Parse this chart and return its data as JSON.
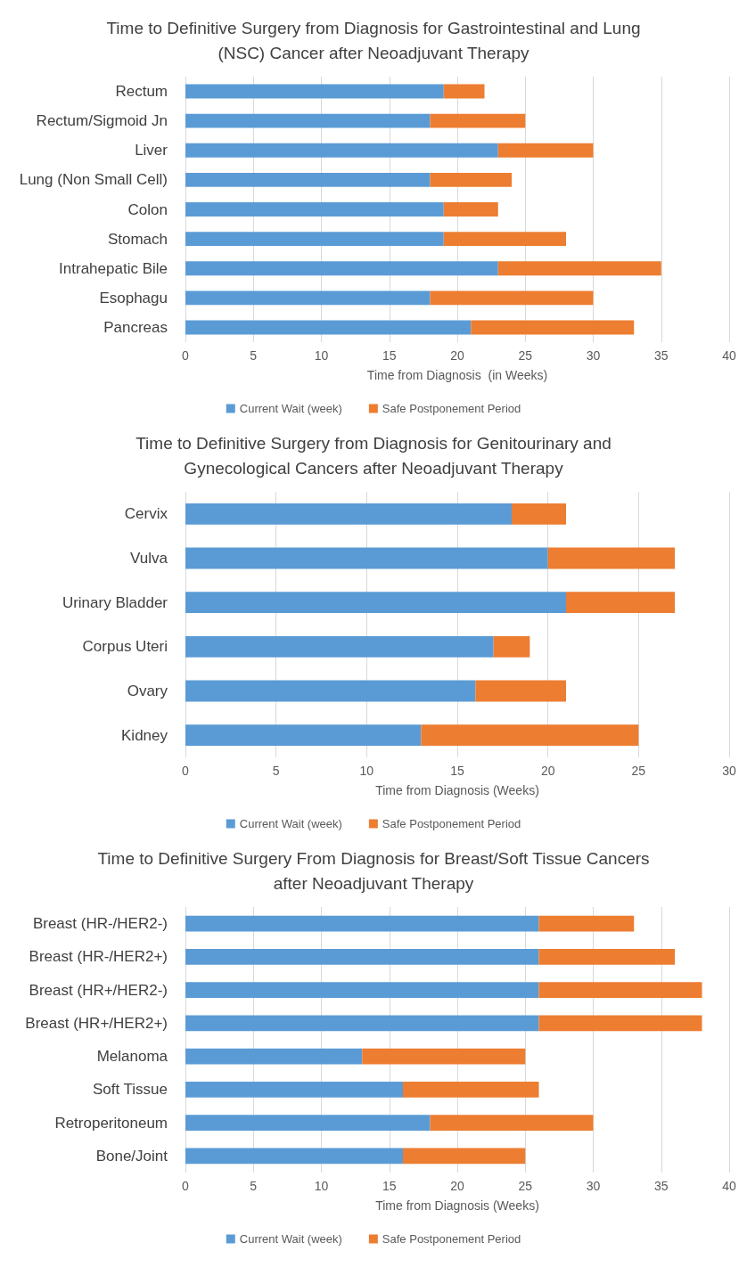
{
  "chart_data": [
    {
      "type": "bar",
      "orientation": "horizontal",
      "stacked": true,
      "title": "Time to Definitive Surgery from Diagnosis for Gastrointestinal and Lung (NSC) Cancer after Neoadjuvant Therapy",
      "xlabel": "Time from Diagnosis  (in Weeks)",
      "categories": [
        "Rectum",
        "Rectum/Sigmoid Jn",
        "Liver",
        "Lung (Non Small Cell)",
        "Colon",
        "Stomach",
        "Intrahepatic Bile",
        "Esophagu",
        "Pancreas"
      ],
      "series": [
        {
          "name": "Current Wait (week)",
          "color": "#5b9bd5",
          "values": [
            19,
            18,
            23,
            18,
            19,
            19,
            23,
            18,
            21
          ]
        },
        {
          "name": "Safe Postponement Period",
          "color": "#ed7d31",
          "values": [
            3,
            7,
            7,
            6,
            4,
            9,
            12,
            12,
            12
          ]
        }
      ],
      "xlim": [
        0,
        40
      ],
      "xticks": [
        0,
        5,
        10,
        15,
        20,
        25,
        30,
        35,
        40
      ],
      "grid": "x",
      "legend": "bottom"
    },
    {
      "type": "bar",
      "orientation": "horizontal",
      "stacked": true,
      "title": "Time to Definitive Surgery from Diagnosis for Genitourinary and Gynecological Cancers after Neoadjuvant Therapy",
      "xlabel": "Time from Diagnosis (Weeks)",
      "categories": [
        "Cervix",
        "Vulva",
        "Urinary Bladder",
        "Corpus Uteri",
        "Ovary",
        "Kidney"
      ],
      "series": [
        {
          "name": "Current Wait (week)",
          "color": "#5b9bd5",
          "values": [
            18,
            20,
            21,
            17,
            16,
            13
          ]
        },
        {
          "name": "Safe Postponement Period",
          "color": "#ed7d31",
          "values": [
            3,
            7,
            6,
            2,
            5,
            12
          ]
        }
      ],
      "xlim": [
        0,
        30
      ],
      "xticks": [
        0,
        5,
        10,
        15,
        20,
        25,
        30
      ],
      "grid": "x",
      "legend": "bottom"
    },
    {
      "type": "bar",
      "orientation": "horizontal",
      "stacked": true,
      "title": "Time to Definitive Surgery From Diagnosis for Breast/Soft Tissue Cancers after Neoadjuvant Therapy",
      "xlabel": "Time from Diagnosis (Weeks)",
      "categories": [
        "Breast (HR-/HER2-)",
        "Breast (HR-/HER2+)",
        "Breast (HR+/HER2-)",
        "Breast (HR+/HER2+)",
        "Melanoma",
        "Soft Tissue",
        "Retroperitoneum",
        "Bone/Joint"
      ],
      "series": [
        {
          "name": "Current Wait (week)",
          "color": "#5b9bd5",
          "values": [
            26,
            26,
            26,
            26,
            13,
            16,
            18,
            16
          ]
        },
        {
          "name": "Safe Postponement Period",
          "color": "#ed7d31",
          "values": [
            7,
            10,
            12,
            12,
            12,
            10,
            12,
            9
          ]
        }
      ],
      "xlim": [
        0,
        40
      ],
      "xticks": [
        0,
        5,
        10,
        15,
        20,
        25,
        30,
        35,
        40
      ],
      "grid": "x",
      "legend": "bottom"
    }
  ]
}
